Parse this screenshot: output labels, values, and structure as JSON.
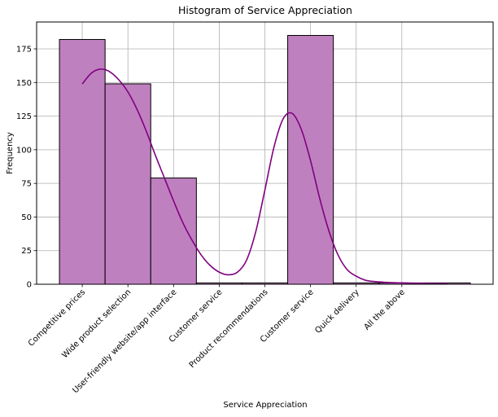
{
  "chart_data": {
    "type": "bar",
    "title": "Histogram of Service Appreciation",
    "xlabel": "Service Appreciation",
    "ylabel": "Frequency",
    "categories": [
      "Competitive prices",
      "Wide product selection",
      "User-friendly website/app interface",
      "Customer service",
      "Product recommendations",
      "Customer service",
      "Quick delivery",
      "All the above"
    ],
    "bins": [
      {
        "from": -0.5,
        "to": 0.5,
        "value": 182
      },
      {
        "from": 0.5,
        "to": 1.5,
        "value": 149
      },
      {
        "from": 1.5,
        "to": 2.5,
        "value": 79
      },
      {
        "from": 2.5,
        "to": 3.5,
        "value": 1
      },
      {
        "from": 3.5,
        "to": 4.5,
        "value": 1
      },
      {
        "from": 4.5,
        "to": 5.5,
        "value": 185
      },
      {
        "from": 5.5,
        "to": 6.5,
        "value": 1
      },
      {
        "from": 6.5,
        "to": 7.5,
        "value": 1
      },
      {
        "from": 7.5,
        "to": 8.5,
        "value": 1
      }
    ],
    "kde": {
      "x": [
        0,
        0.2,
        0.4,
        0.6,
        0.8,
        1.0,
        1.2,
        1.4,
        1.6,
        1.8,
        2.0,
        2.2,
        2.4,
        2.6,
        2.8,
        3.0,
        3.2,
        3.4,
        3.6,
        3.8,
        4.0,
        4.2,
        4.4,
        4.6,
        4.8,
        5.0,
        5.2,
        5.4,
        5.6,
        5.8,
        6.0,
        6.2,
        6.4,
        6.6,
        6.8,
        7.0,
        7.2,
        7.4,
        7.6,
        7.8,
        8.0
      ],
      "y": [
        149,
        157,
        160,
        158,
        152,
        143,
        130,
        114,
        96,
        79,
        62,
        46,
        33,
        22,
        14,
        9,
        7,
        9,
        18,
        39,
        70,
        102,
        123,
        127,
        115,
        92,
        64,
        40,
        22,
        11,
        6,
        3,
        2,
        1.5,
        1.2,
        1,
        0.8,
        0.7,
        0.6,
        0.5,
        0.5
      ]
    },
    "xlim": [
      -1,
      9
    ],
    "ylim": [
      0,
      195
    ],
    "yticks": [
      0,
      25,
      50,
      75,
      100,
      125,
      150,
      175
    ],
    "grid": true,
    "colors": {
      "bar_fill": "#bf80bf",
      "bar_edge": "#000000",
      "kde_line": "#800080",
      "grid": "#b0b0b0"
    }
  }
}
